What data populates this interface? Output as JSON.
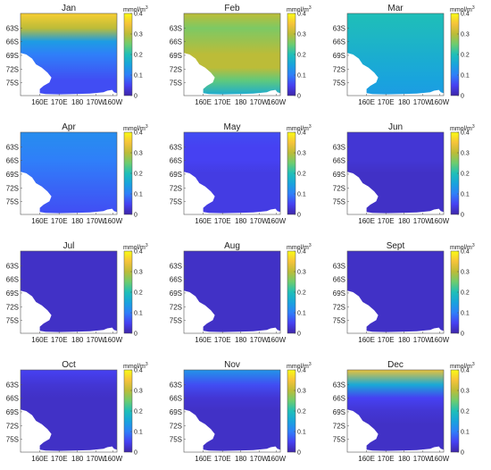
{
  "chart_data": {
    "type": "heatmap",
    "layout": "3x4-panel-grid",
    "units": "mmol/m",
    "units_superscript": "3",
    "colormap": "parula",
    "colormap_stops": [
      "#3e26a8",
      "#4641f2",
      "#2f7ff9",
      "#19a3dd",
      "#1fbfb8",
      "#6dcc6f",
      "#bcbc38",
      "#f6c33a",
      "#f9fb15"
    ],
    "land_color": "#ffffff",
    "colorbar": {
      "range": [
        0,
        0.4
      ],
      "ticks": [
        "0",
        "0.1",
        "0.2",
        "0.3",
        "0.4"
      ]
    },
    "x_ticks": [
      "160E",
      "170E",
      "180",
      "170W",
      "160W"
    ],
    "y_ticks": [
      "63S",
      "66S",
      "69S",
      "72S",
      "75S"
    ],
    "panels": [
      {
        "month": "Jan",
        "bands": [
          0.36,
          0.3,
          0.14,
          0.1,
          0.08,
          0.06,
          0.06
        ]
      },
      {
        "month": "Feb",
        "bands": [
          0.3,
          0.26,
          0.28,
          0.3,
          0.3,
          0.24,
          0.16
        ]
      },
      {
        "month": "Mar",
        "bands": [
          0.2,
          0.19,
          0.18,
          0.17,
          0.16,
          0.15,
          0.14
        ]
      },
      {
        "month": "Apr",
        "bands": [
          0.12,
          0.11,
          0.1,
          0.09,
          0.08,
          0.07,
          0.06
        ]
      },
      {
        "month": "May",
        "bands": [
          0.06,
          0.05,
          0.05,
          0.04,
          0.04,
          0.04,
          0.04
        ]
      },
      {
        "month": "Jun",
        "bands": [
          0.03,
          0.03,
          0.03,
          0.02,
          0.02,
          0.02,
          0.02
        ]
      },
      {
        "month": "Jul",
        "bands": [
          0.02,
          0.02,
          0.02,
          0.02,
          0.02,
          0.02,
          0.02
        ]
      },
      {
        "month": "Aug",
        "bands": [
          0.02,
          0.02,
          0.02,
          0.02,
          0.02,
          0.02,
          0.02
        ]
      },
      {
        "month": "Sept",
        "bands": [
          0.02,
          0.02,
          0.02,
          0.02,
          0.02,
          0.02,
          0.02
        ]
      },
      {
        "month": "Oct",
        "bands": [
          0.05,
          0.03,
          0.02,
          0.02,
          0.02,
          0.02,
          0.02
        ]
      },
      {
        "month": "Nov",
        "bands": [
          0.13,
          0.06,
          0.03,
          0.02,
          0.02,
          0.02,
          0.02
        ]
      },
      {
        "month": "Dec",
        "bands": [
          0.34,
          0.16,
          0.05,
          0.03,
          0.02,
          0.02,
          0.02
        ]
      }
    ]
  }
}
